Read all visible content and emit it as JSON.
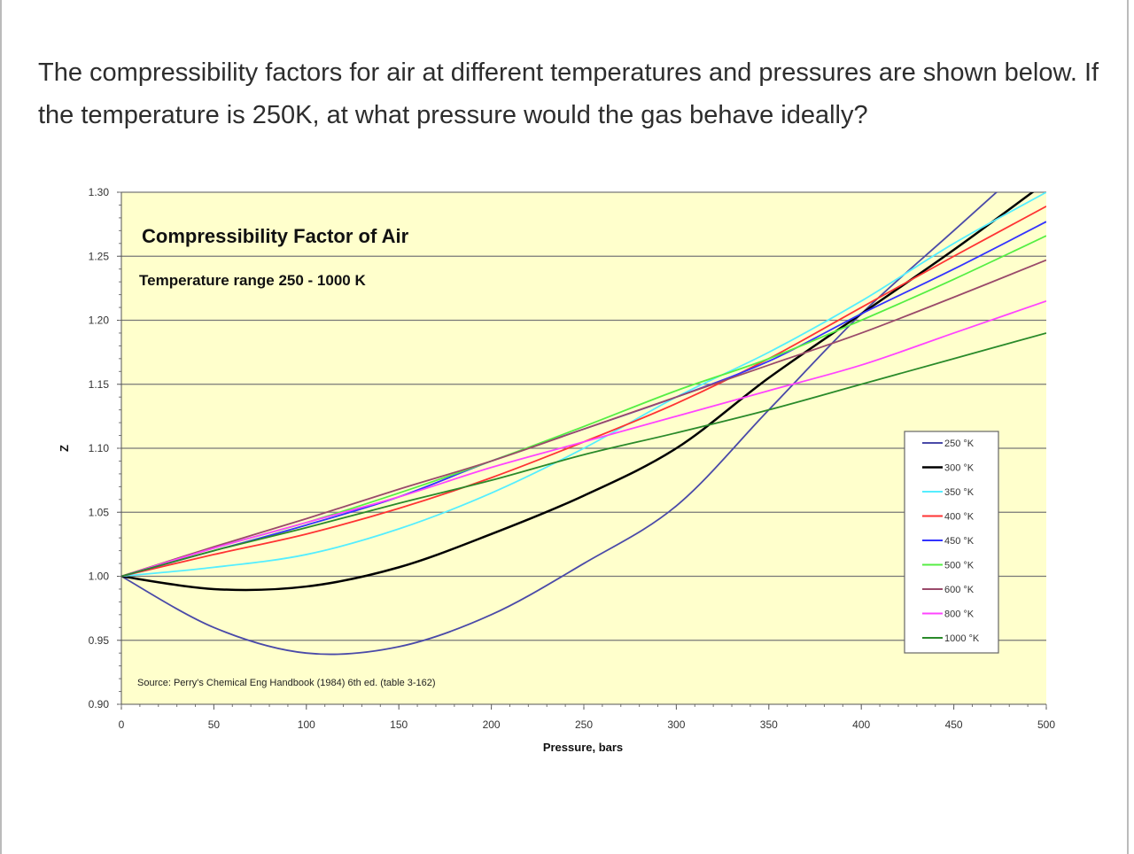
{
  "question": "The compressibility factors for air at different temperatures and pressures are shown below. If the temperature is 250K, at what pressure would the gas behave ideally?",
  "chart_data": {
    "type": "line",
    "title": "Compressibility Factor of Air",
    "subtitle": "Temperature range 250 - 1000  K",
    "annotation": "Source: Perry's Chemical Eng Handbook (1984) 6th ed.  (table 3-162)",
    "xlabel": "Pressure, bars",
    "ylabel": "Z",
    "xlim": [
      0,
      500
    ],
    "ylim": [
      0.9,
      1.3
    ],
    "x_ticks": [
      "0",
      "50",
      "100",
      "150",
      "200",
      "250",
      "300",
      "350",
      "400",
      "450",
      "500"
    ],
    "y_ticks": [
      "0.90",
      "0.95",
      "1.00",
      "1.05",
      "1.10",
      "1.15",
      "1.20",
      "1.25",
      "1.30"
    ],
    "grid": "horizontal",
    "legend_placement": "right",
    "plot_background": "#FFFFCC",
    "x": [
      0,
      50,
      100,
      150,
      200,
      250,
      300,
      350,
      400,
      450,
      500
    ],
    "series": [
      {
        "name": "250 °K",
        "color": "#4a4aa8",
        "values": [
          1.0,
          0.96,
          0.94,
          0.945,
          0.97,
          1.01,
          1.055,
          1.13,
          1.205,
          1.27,
          1.335
        ]
      },
      {
        "name": "300 °K",
        "color": "#000000",
        "values": [
          1.0,
          0.99,
          0.992,
          1.007,
          1.033,
          1.063,
          1.1,
          1.155,
          1.205,
          1.255,
          1.308
        ]
      },
      {
        "name": "350 °K",
        "color": "#55eeff",
        "values": [
          1.0,
          1.007,
          1.017,
          1.037,
          1.065,
          1.1,
          1.14,
          1.175,
          1.215,
          1.26,
          1.3
        ]
      },
      {
        "name": "400 °K",
        "color": "#ff3333",
        "values": [
          1.0,
          1.017,
          1.033,
          1.053,
          1.077,
          1.105,
          1.135,
          1.17,
          1.21,
          1.25,
          1.289
        ]
      },
      {
        "name": "450 °K",
        "color": "#3333ff",
        "values": [
          1.0,
          1.02,
          1.04,
          1.062,
          1.09,
          1.115,
          1.14,
          1.168,
          1.205,
          1.24,
          1.277
        ]
      },
      {
        "name": "500 °K",
        "color": "#55ee44",
        "values": [
          1.0,
          1.022,
          1.042,
          1.065,
          1.09,
          1.117,
          1.145,
          1.17,
          1.2,
          1.232,
          1.266
        ]
      },
      {
        "name": "600 °K",
        "color": "#9a4a6a",
        "values": [
          1.0,
          1.023,
          1.045,
          1.068,
          1.09,
          1.115,
          1.14,
          1.165,
          1.19,
          1.218,
          1.247
        ]
      },
      {
        "name": "800 °K",
        "color": "#ff44ff",
        "values": [
          1.0,
          1.022,
          1.042,
          1.062,
          1.085,
          1.105,
          1.125,
          1.145,
          1.165,
          1.19,
          1.215
        ]
      },
      {
        "name": "1000 °K",
        "color": "#2a8a2a",
        "values": [
          1.0,
          1.02,
          1.038,
          1.057,
          1.075,
          1.095,
          1.112,
          1.13,
          1.15,
          1.17,
          1.19
        ]
      }
    ]
  }
}
